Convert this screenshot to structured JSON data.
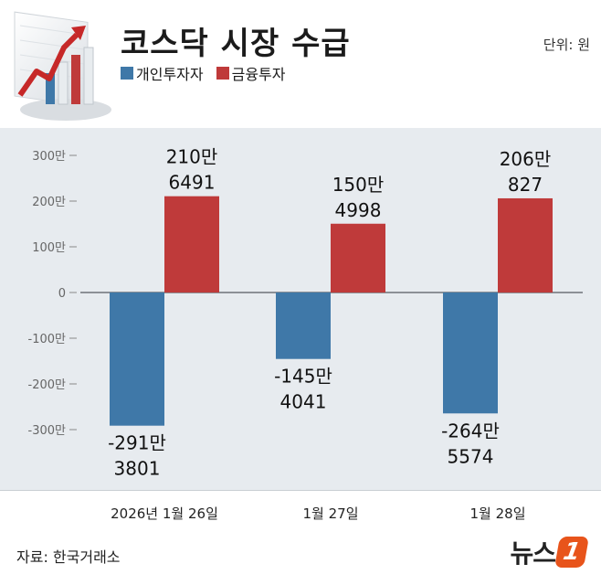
{
  "title": "코스닥 시장 수급",
  "unit": "단위: 원",
  "source": "자료: 한국거래소",
  "logo_text": "뉴스",
  "logo_badge": "1",
  "colors": {
    "individual": "#3f78a8",
    "finance": "#bf3a3a",
    "plot_bg": "#e7ebef"
  },
  "chart_data": {
    "type": "bar",
    "categories": [
      "2026년 1월 26일",
      "1월 27일",
      "1월 28일"
    ],
    "series": [
      {
        "name": "개인투자자",
        "values": [
          -2913801,
          -1454041,
          -2645574
        ],
        "labels": [
          [
            "-291만",
            "3801"
          ],
          [
            "-145만",
            "4041"
          ],
          [
            "-264만",
            "5574"
          ]
        ]
      },
      {
        "name": "금융투자",
        "values": [
          2106491,
          1504998,
          2060827
        ],
        "labels": [
          [
            "210만",
            "6491"
          ],
          [
            "150만",
            "4998"
          ],
          [
            "206만",
            "827"
          ]
        ]
      }
    ],
    "y_ticks": [
      {
        "value": 3000000,
        "label": "300만"
      },
      {
        "value": 2000000,
        "label": "200만"
      },
      {
        "value": 1000000,
        "label": "100만"
      },
      {
        "value": 0,
        "label": "0"
      },
      {
        "value": -1000000,
        "label": "-100만"
      },
      {
        "value": -2000000,
        "label": "-200만"
      },
      {
        "value": -3000000,
        "label": "-300만"
      }
    ],
    "ylim": [
      -3000000,
      3000000
    ],
    "legend": "top-left",
    "grid": false
  }
}
